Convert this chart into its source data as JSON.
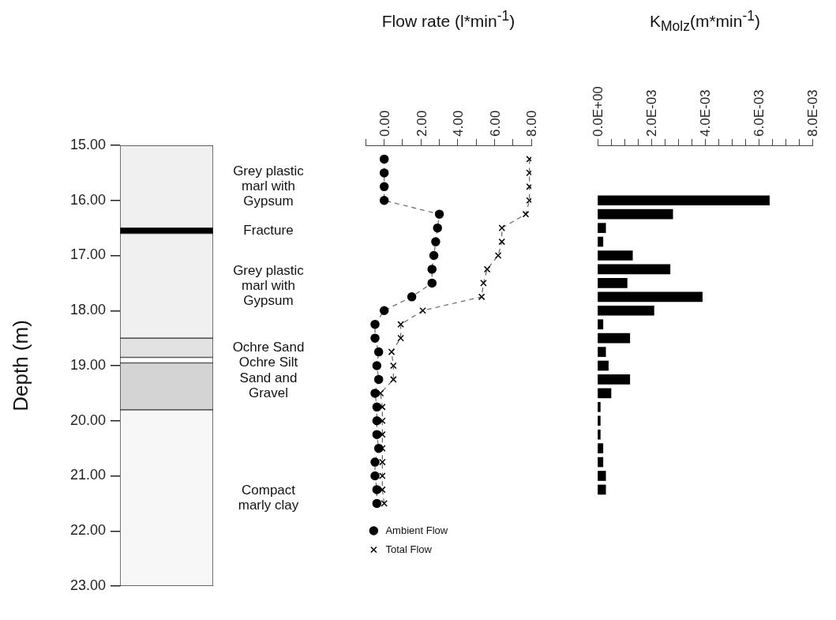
{
  "chart_data": [
    {
      "type": "bar",
      "ylabel": "Depth (m)",
      "ylim": [
        23,
        15
      ],
      "tick_labels": "y",
      "categories": [
        null
      ],
      "yticks": [
        {
          "value": 15,
          "label": "15.00"
        },
        {
          "value": 16,
          "label": "16.00"
        },
        {
          "value": 17,
          "label": "17.00"
        },
        {
          "value": 18,
          "label": "18.00"
        },
        {
          "value": 19,
          "label": "19.00"
        },
        {
          "value": 20,
          "label": "20.00"
        },
        {
          "value": 21,
          "label": "21.00"
        },
        {
          "value": 22,
          "label": "22.00"
        },
        {
          "value": 23,
          "label": "23.00"
        }
      ],
      "series": [
        {
          "name": "Grey plastic marl with Gypsum",
          "color": "#f0f0f0",
          "base": [
            15
          ],
          "values": [
            1.5
          ]
        },
        {
          "name": "Fracture",
          "color": "#000000",
          "base": [
            16.5
          ],
          "values": [
            0.1
          ]
        },
        {
          "name": "Grey plastic marl with Gypsum",
          "color": "#f0f0f0",
          "base": [
            16.6
          ],
          "values": [
            1.9
          ]
        },
        {
          "name": "Ochre Sand",
          "color": "#e2e2e2",
          "base": [
            18.5
          ],
          "values": [
            0.35
          ]
        },
        {
          "name": "Ochre Silt",
          "color": "#ffffff",
          "base": [
            18.85
          ],
          "values": [
            0.1
          ]
        },
        {
          "name": "Sand and Gravel",
          "color": "#d4d4d4",
          "base": [
            18.95
          ],
          "values": [
            0.85
          ]
        },
        {
          "name": "Compact marly clay",
          "color": "#f7f7f7",
          "base": [
            19.8
          ],
          "values": [
            3.2
          ]
        }
      ]
    },
    {
      "type": "line",
      "xlabel": "Flow rate (l*min$^{-1}$)",
      "xlim": [
        -1,
        8
      ],
      "ylim": [
        23,
        15
      ],
      "tick_labels": "x",
      "legend": "bottom left",
      "xticks": [
        {
          "value": -1,
          "label": null
        },
        {
          "value": 0,
          "label": "0.00"
        },
        {
          "value": 1,
          "label": null
        },
        {
          "value": 2,
          "label": "2.00"
        },
        {
          "value": 3,
          "label": null
        },
        {
          "value": 4,
          "label": "4.00"
        },
        {
          "value": 5,
          "label": null
        },
        {
          "value": 6,
          "label": "6.00"
        },
        {
          "value": 7,
          "label": null
        },
        {
          "value": 8,
          "label": "8.00"
        }
      ],
      "series": [
        {
          "name": "Ambient Flow",
          "color": "#000000",
          "marker": "circle",
          "line_style": "dashed",
          "x": [
            0,
            0,
            0,
            0,
            3.0,
            2.9,
            2.8,
            2.7,
            2.6,
            2.6,
            1.5,
            0,
            -0.5,
            -0.5,
            -0.3,
            -0.4,
            -0.3,
            -0.5,
            -0.4,
            -0.4,
            -0.4,
            -0.3,
            -0.5,
            -0.5,
            -0.4,
            -0.4
          ],
          "values": [
            15.25,
            15.5,
            15.75,
            16,
            16.25,
            16.5,
            16.75,
            17,
            17.25,
            17.5,
            17.75,
            18,
            18.25,
            18.5,
            18.75,
            19,
            19.25,
            19.5,
            19.75,
            20,
            20.25,
            20.5,
            20.75,
            21,
            21.25,
            21.5
          ]
        },
        {
          "name": "Total Flow",
          "color": "#000000",
          "marker": "cross",
          "line_style": "dashed",
          "x": [
            7.9,
            7.9,
            7.9,
            7.9,
            7.7,
            6.4,
            6.4,
            6.2,
            5.6,
            5.4,
            5.3,
            2.1,
            0.9,
            0.9,
            0.4,
            0.5,
            0.5,
            -0.2,
            -0.1,
            -0.1,
            -0.1,
            -0.1,
            -0.1,
            -0.1,
            -0.1,
            0.0
          ],
          "values": [
            15.25,
            15.5,
            15.75,
            16,
            16.25,
            16.5,
            16.75,
            17,
            17.25,
            17.5,
            17.75,
            18,
            18.25,
            18.5,
            18.75,
            19,
            19.25,
            19.5,
            19.75,
            20,
            20.25,
            20.5,
            20.75,
            21,
            21.25,
            21.5
          ]
        }
      ]
    },
    {
      "type": "bar",
      "orientation": "horizontal",
      "xlabel": "K$_{Molz}$(m*min$^{-1}$)",
      "xlim": [
        0,
        0.008
      ],
      "ylim": [
        23,
        15
      ],
      "tick_labels": "x",
      "xticks": [
        {
          "value": 0,
          "label": "0.0E+00"
        },
        {
          "value": 0.0005,
          "label": null
        },
        {
          "value": 0.001,
          "label": null
        },
        {
          "value": 0.0015,
          "label": null
        },
        {
          "value": 0.002,
          "label": "2.0E-03"
        },
        {
          "value": 0.0025,
          "label": null
        },
        {
          "value": 0.003,
          "label": null
        },
        {
          "value": 0.0035,
          "label": null
        },
        {
          "value": 0.004,
          "label": "4.0E-03"
        },
        {
          "value": 0.0045,
          "label": null
        },
        {
          "value": 0.005,
          "label": null
        },
        {
          "value": 0.0055,
          "label": null
        },
        {
          "value": 0.006,
          "label": "6.0E-03"
        },
        {
          "value": 0.0065,
          "label": null
        },
        {
          "value": 0.007,
          "label": null
        },
        {
          "value": 0.0075,
          "label": null
        },
        {
          "value": 0.008,
          "label": "8.0E-03"
        }
      ],
      "x": [
        16,
        16.25,
        16.5,
        16.75,
        17,
        17.25,
        17.5,
        17.75,
        18,
        18.25,
        18.5,
        18.75,
        19,
        19.25,
        19.5,
        19.75,
        20,
        20.25,
        20.5,
        20.75,
        21,
        21.25
      ],
      "values": [
        0.0064,
        0.0028,
        0.0003,
        0.0002,
        0.0013,
        0.0027,
        0.0011,
        0.0039,
        0.0021,
        0.0002,
        0.0012,
        0.0003,
        0.0004,
        0.0012,
        0.0005,
        0.0001,
        0.0001,
        0.0001,
        0.0002,
        0.0002,
        0.0003,
        0.0003
      ],
      "color": "#000000"
    }
  ]
}
